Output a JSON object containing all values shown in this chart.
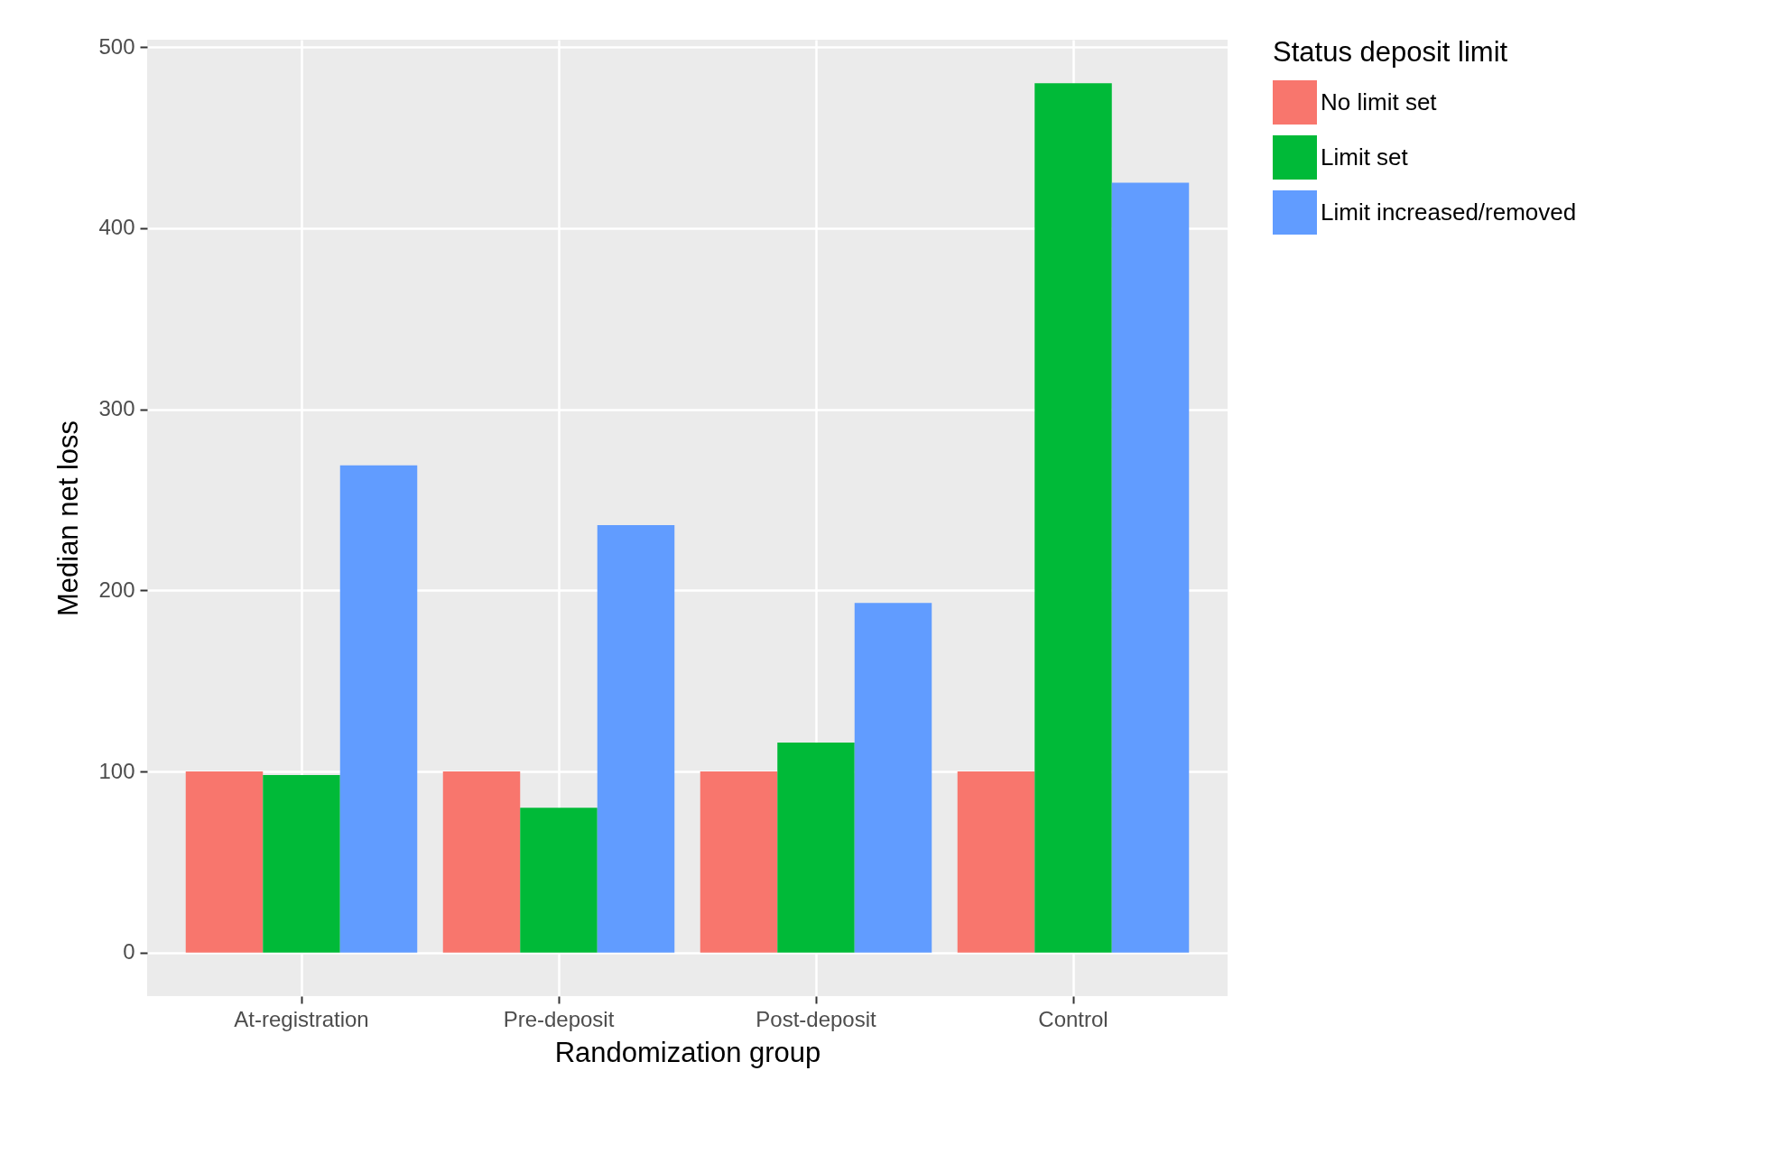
{
  "chart_data": {
    "type": "bar",
    "xlabel": "Randomization group",
    "ylabel": "Median net loss",
    "legend_title": "Status deposit limit",
    "categories": [
      "At-registration",
      "Pre-deposit",
      "Post-deposit",
      "Control"
    ],
    "series": [
      {
        "name": "No limit set",
        "color": "#f8766d",
        "values": [
          100,
          100,
          100,
          100
        ]
      },
      {
        "name": "Limit set",
        "color": "#00ba38",
        "values": [
          98,
          80,
          116,
          480
        ]
      },
      {
        "name": "Limit increased/removed",
        "color": "#619cff",
        "values": [
          269,
          236,
          193,
          425
        ]
      }
    ],
    "ylim": [
      -24,
      504
    ],
    "yticks": [
      0,
      100,
      200,
      300,
      400,
      500
    ],
    "grid": true,
    "legend": "right"
  }
}
